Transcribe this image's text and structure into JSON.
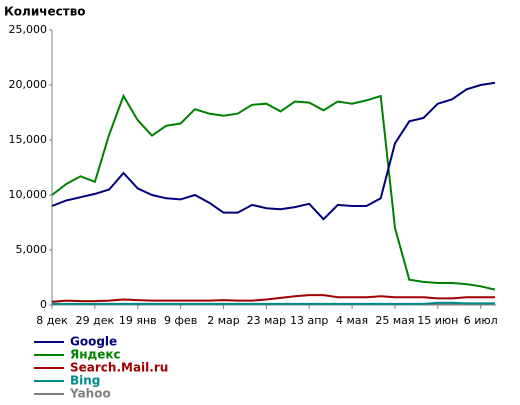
{
  "chart_data": {
    "type": "line",
    "title": "Количество",
    "categories": [
      "8 дек",
      null,
      null,
      "29 дек",
      null,
      null,
      "19 янв",
      null,
      null,
      "9 фев",
      null,
      null,
      "2 мар",
      null,
      null,
      "23 мар",
      null,
      null,
      "13 апр",
      null,
      null,
      "4 мая",
      null,
      null,
      "25 мая",
      null,
      null,
      "15 июн",
      null,
      null,
      "6 июл",
      null
    ],
    "series": [
      {
        "name": "Google",
        "color": "#000080",
        "values": [
          9000,
          9500,
          9800,
          10100,
          10500,
          12000,
          10600,
          10000,
          9700,
          9600,
          10000,
          9300,
          8400,
          8400,
          9100,
          8800,
          8700,
          8900,
          9200,
          7800,
          9100,
          9000,
          9000,
          9700,
          14700,
          16700,
          17000,
          18300,
          18700,
          19600,
          20000,
          20200
        ]
      },
      {
        "name": "Яндекс",
        "color": "#008000",
        "values": [
          10000,
          11000,
          11700,
          11200,
          15500,
          19000,
          16800,
          15400,
          16300,
          16500,
          17800,
          17400,
          17200,
          17400,
          18200,
          18300,
          17600,
          18500,
          18400,
          17700,
          18500,
          18300,
          18600,
          19000,
          7000,
          2300,
          2100,
          2000,
          2000,
          1900,
          1700,
          1400
        ]
      },
      {
        "name": "Search.Mail.ru",
        "color": "#a00000",
        "values": [
          300,
          400,
          350,
          350,
          400,
          500,
          450,
          400,
          400,
          400,
          400,
          400,
          450,
          400,
          400,
          500,
          650,
          800,
          900,
          900,
          700,
          700,
          700,
          800,
          700,
          700,
          700,
          600,
          600,
          700,
          700,
          700
        ]
      },
      {
        "name": "Bing",
        "color": "#008b8b",
        "values": [
          100,
          100,
          100,
          100,
          100,
          100,
          100,
          100,
          100,
          100,
          100,
          100,
          100,
          100,
          100,
          100,
          100,
          100,
          100,
          100,
          100,
          100,
          100,
          100,
          100,
          100,
          100,
          200,
          200,
          150,
          150,
          150
        ]
      },
      {
        "name": "Yahoo",
        "color": "#808080",
        "values": [
          50,
          50,
          50,
          50,
          50,
          50,
          50,
          50,
          50,
          50,
          50,
          50,
          50,
          50,
          50,
          50,
          50,
          50,
          50,
          50,
          50,
          50,
          50,
          50,
          50,
          50,
          50,
          50,
          50,
          50,
          50,
          50
        ]
      }
    ],
    "ylim": [
      0,
      25000
    ],
    "yticks": [
      0,
      {
        "value": 5000,
        "label": "5,000"
      },
      {
        "value": 10000,
        "label": "10,000"
      },
      {
        "value": 15000,
        "label": "15,000"
      },
      {
        "value": 20000,
        "label": "20,000"
      },
      {
        "value": 25000,
        "label": "25,000"
      }
    ],
    "grid": false
  }
}
